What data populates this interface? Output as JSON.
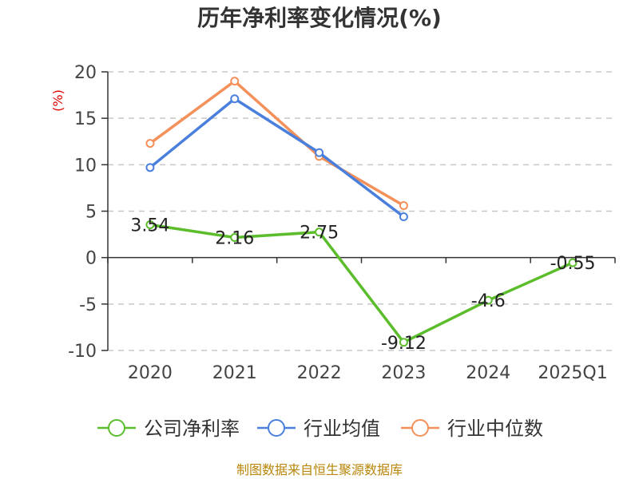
{
  "chart_data": {
    "type": "line",
    "title": "历年净利率变化情况(%)",
    "ylabel": "(%)",
    "categories": [
      "2020",
      "2021",
      "2022",
      "2023",
      "2024",
      "2025Q1"
    ],
    "ylim": [
      -10,
      20
    ],
    "yticks": [
      "20",
      "15",
      "10",
      "5",
      "0",
      "-5",
      "-10"
    ],
    "grid": true,
    "legend_position": "bottom",
    "series": [
      {
        "name": "公司净利率",
        "color": "#5bbd2b",
        "values": [
          3.54,
          2.16,
          2.75,
          -9.12,
          -4.6,
          -0.55
        ],
        "labels": [
          "3.54",
          "2.16",
          "2.75",
          "-9.12",
          "-4.6",
          "-0.55"
        ]
      },
      {
        "name": "行业均值",
        "color": "#4a7fdc",
        "values": [
          9.7,
          17.1,
          11.3,
          4.4,
          null,
          null
        ]
      },
      {
        "name": "行业中位数",
        "color": "#f4905a",
        "values": [
          12.3,
          19.0,
          10.9,
          5.6,
          null,
          null
        ]
      }
    ],
    "source": "制图数据来自恒生聚源数据库"
  }
}
